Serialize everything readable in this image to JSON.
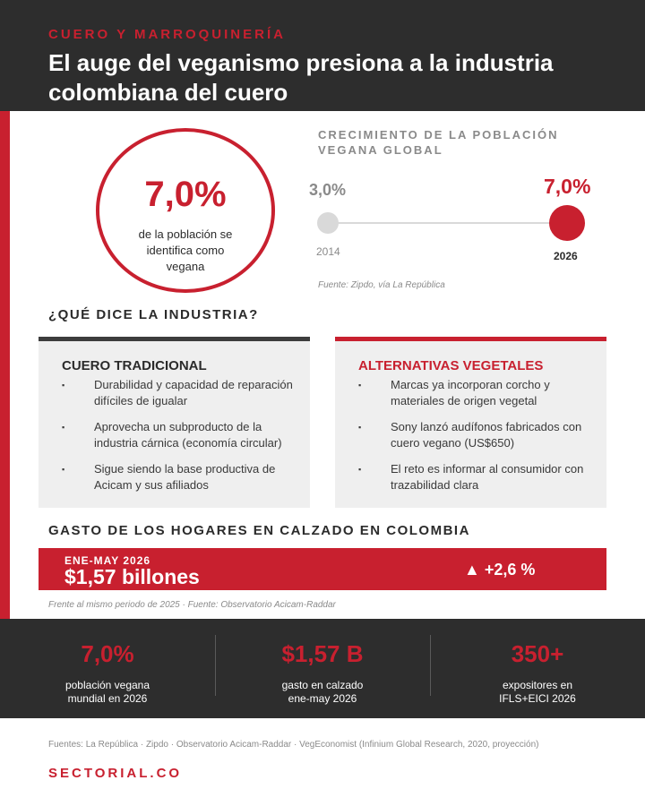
{
  "header": {
    "kicker": "CUERO Y MARROQUINERÍA",
    "title": "El auge del veganismo presiona a la industria colombiana del cuero"
  },
  "highlight": {
    "value": "7,0%",
    "caption": "de la población se identifica como vegana"
  },
  "growth": {
    "title": "CRECIMIENTO DE LA POBLACIÓN VEGANA GLOBAL",
    "start": {
      "value": "3,0%",
      "year": "2014"
    },
    "end": {
      "value": "7,0%",
      "year": "2026"
    },
    "source": "Fuente: Zipdo, vía La República"
  },
  "industry": {
    "heading": "¿QUÉ DICE LA INDUSTRIA?",
    "traditional": {
      "title": "CUERO TRADICIONAL",
      "items": [
        "Durabilidad y capacidad de reparación difíciles de igualar",
        "Aprovecha un subproducto de la industria cárnica (economía circular)",
        "Sigue siendo la base productiva de Acicam y sus afiliados"
      ]
    },
    "alternatives": {
      "title": "ALTERNATIVAS VEGETALES",
      "items": [
        "Marcas ya incorporan corcho y materiales de origen vegetal",
        "Sony lanzó audífonos fabricados con cuero vegano (US$650)",
        "El reto es informar al consumidor con trazabilidad clara"
      ]
    }
  },
  "spending": {
    "heading": "GASTO DE LOS HOGARES EN CALZADO EN COLOMBIA",
    "period": "ENE-MAY 2026",
    "amount": "$1,57 billones",
    "change": "▲ +2,6 %",
    "note": "Frente al mismo periodo de 2025 · Fuente: Observatorio Acicam-Raddar"
  },
  "stats": [
    {
      "value": "7,0%",
      "label_1": "población vegana",
      "label_2": "mundial en 2026"
    },
    {
      "value": "$1,57 B",
      "label_1": "gasto en calzado",
      "label_2": "ene-may 2026"
    },
    {
      "value": "350+",
      "label_1": "expositores en",
      "label_2": "IFLS+EICI 2026"
    }
  ],
  "footer": {
    "sources": "Fuentes: La República · Zipdo · Observatorio Acicam-Raddar · VegEconomist (Infinium Global Research, 2020, proyección)",
    "brand": "SECTORIAL.CO"
  },
  "colors": {
    "accent": "#c8202f",
    "dark": "#2d2d2d",
    "panel": "#efefef"
  }
}
